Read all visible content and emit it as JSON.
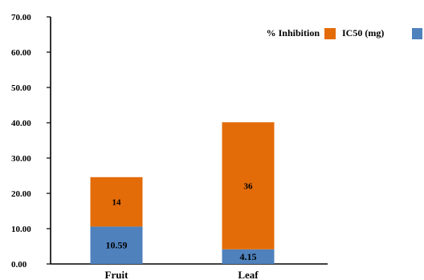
{
  "chart_data": {
    "type": "bar",
    "stacked": true,
    "categories": [
      "Fruit",
      "Leaf"
    ],
    "series": [
      {
        "name": "IC50 (mg)",
        "values": [
          10.59,
          4.15
        ],
        "color": "#4f81bd",
        "labels": [
          "10.59",
          "4.15"
        ]
      },
      {
        "name": "% Inhibition",
        "values": [
          14,
          36
        ],
        "color": "#e36c09",
        "labels": [
          "14",
          "36"
        ]
      }
    ],
    "ylim": [
      0,
      70
    ],
    "yticks": [
      "0.00",
      "10.00",
      "20.00",
      "30.00",
      "40.00",
      "50.00",
      "60.00",
      "70.00"
    ],
    "grid": false,
    "legend_position": "top-right"
  }
}
